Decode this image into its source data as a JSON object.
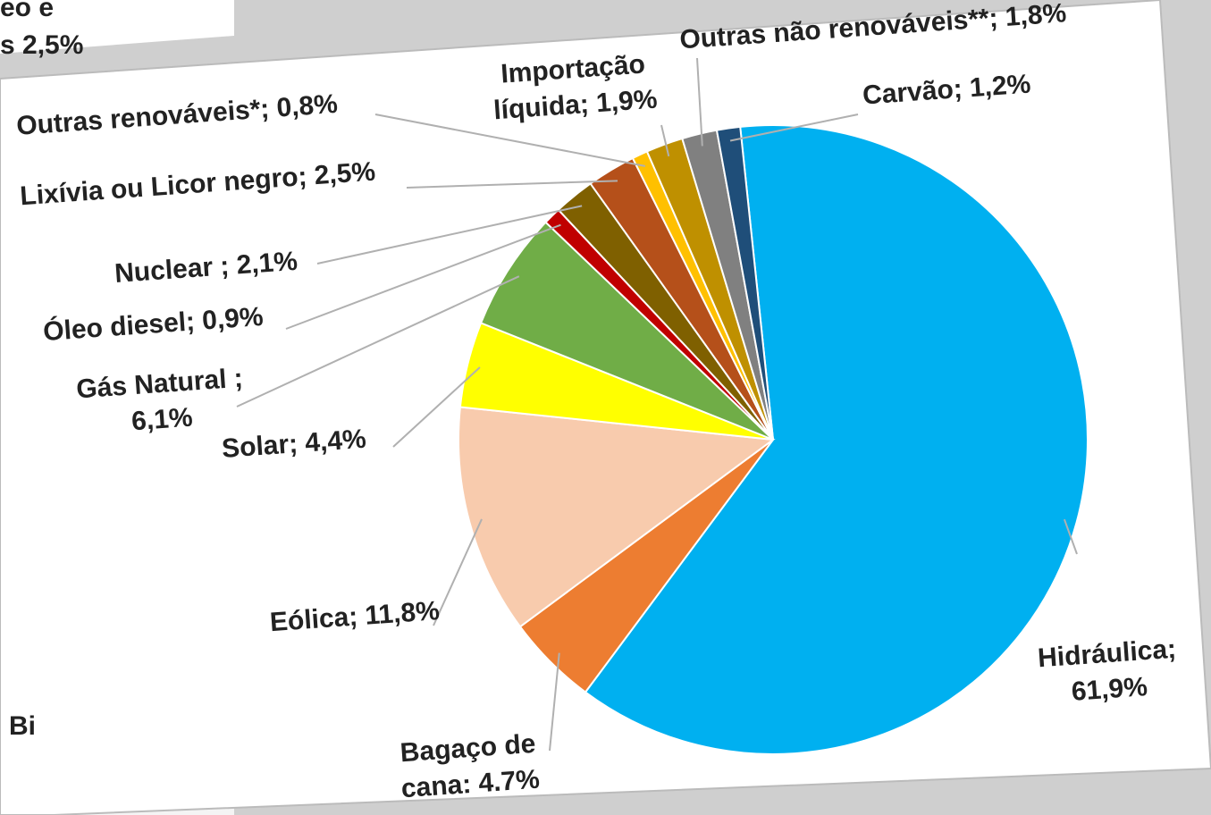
{
  "chart_data": {
    "type": "pie",
    "values": [
      61.9,
      4.7,
      11.8,
      4.4,
      6.1,
      0.9,
      2.1,
      2.5,
      0.8,
      1.9,
      1.8,
      1.2
    ],
    "value_labels": [
      "Hidráulica; 61,9%",
      "Bagaço de cana: 4.7%",
      "Eólica; 11,8%",
      "Solar; 4,4%",
      "Gás Natural ; 6,1%",
      "Óleo diesel; 0,9%",
      "Nuclear ; 2,1%",
      "Lixívia ou Licor negro; 2,5%",
      "Outras renováveis*; 0,8%",
      "Importação líquida; 1,9%",
      "Outras não renováveis**; 1,8%",
      "Carvão; 1,2%"
    ],
    "colors": [
      "#00b0f0",
      "#ed7d31",
      "#f8cbad",
      "#ffff00",
      "#70ad47",
      "#c00000",
      "#7f6000",
      "#b5501a",
      "#ffc000",
      "#bf9000",
      "#808080",
      "#1f4e79"
    ],
    "background_fragments": [
      "eo e",
      "s 2,5%",
      "Bi"
    ]
  }
}
